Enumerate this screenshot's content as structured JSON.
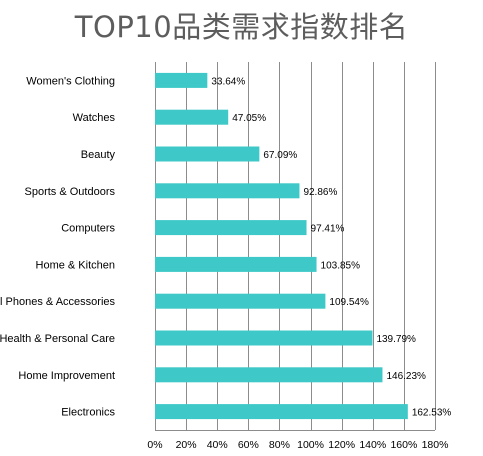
{
  "chart_data": {
    "type": "bar",
    "orientation": "horizontal",
    "title": "TOP10品类需求指数排名",
    "categories": [
      "Women's Clothing",
      "Watches",
      "Beauty",
      "Sports & Outdoors",
      "Computers",
      "Home & Kitchen",
      "Cell Phones & Accessories",
      "Health & Personal Care",
      "Home Improvement",
      "Electronics"
    ],
    "values": [
      33.64,
      47.05,
      67.09,
      92.86,
      97.41,
      103.85,
      109.54,
      139.79,
      146.23,
      162.53
    ],
    "value_labels": [
      "33.64%",
      "47.05%",
      "67.09%",
      "92.86%",
      "97.41%",
      "103.85%",
      "109.54%",
      "139.79%",
      "146.23%",
      "162.53%"
    ],
    "xlim": [
      0,
      180
    ],
    "xticks": [
      0,
      20,
      40,
      60,
      80,
      100,
      120,
      140,
      160,
      180
    ],
    "xtick_labels": [
      "0%",
      "20%",
      "40%",
      "60%",
      "80%",
      "100%",
      "120%",
      "140%",
      "160%",
      "180%"
    ],
    "xlabel": "",
    "ylabel": "",
    "grid": "vertical",
    "legend": "none",
    "bar_color": "#3ec8c8"
  }
}
